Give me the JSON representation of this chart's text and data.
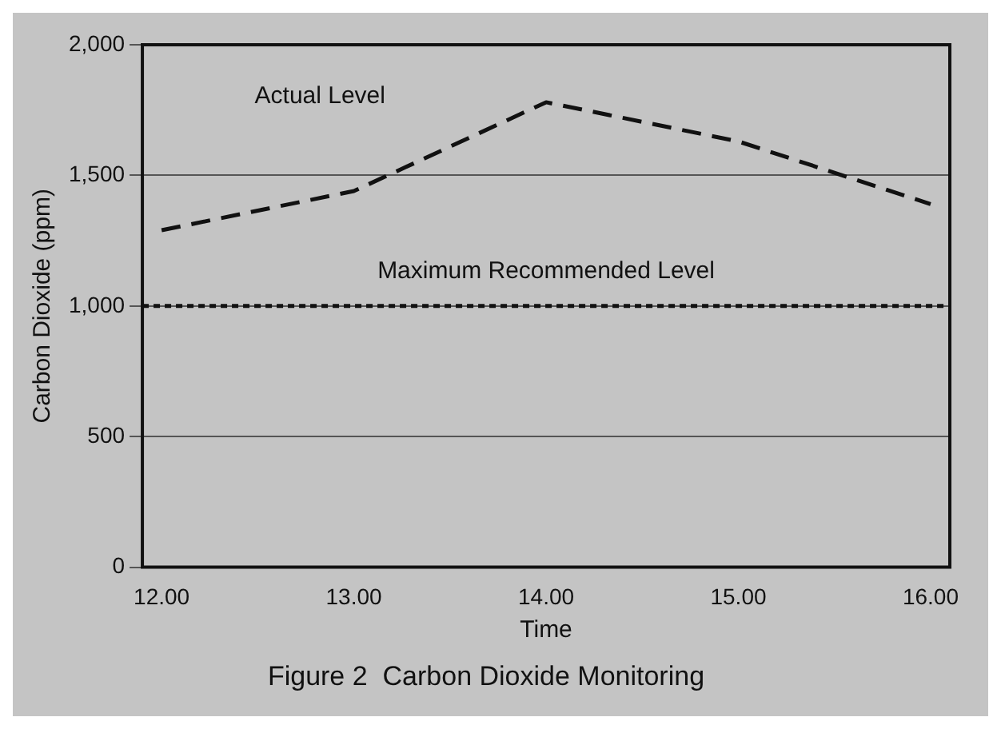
{
  "chart_data": {
    "type": "line",
    "title": "Figure 2  Carbon Dioxide Monitoring",
    "xlabel": "Time",
    "ylabel": "Carbon Dioxide (ppm)",
    "x": [
      12,
      13,
      14,
      15,
      16
    ],
    "series": [
      {
        "name": "Actual Level",
        "color": "#111111",
        "values": [
          1290,
          1440,
          1780,
          1630,
          1390
        ],
        "line_style": "dashed"
      }
    ],
    "xlim": [
      11.9,
      16.1
    ],
    "xticks": [
      {
        "value": 12,
        "label": "12.00"
      },
      {
        "value": 13,
        "label": "13.00"
      },
      {
        "value": 14,
        "label": "14.00"
      },
      {
        "value": 15,
        "label": "15.00"
      },
      {
        "value": 16,
        "label": "16.00"
      }
    ],
    "ylim": [
      0,
      2000
    ],
    "yticks": [
      {
        "value": 0,
        "label": "0"
      },
      {
        "value": 500,
        "label": "500"
      },
      {
        "value": 1000,
        "label": "1,000"
      },
      {
        "value": 1500,
        "label": "1,500"
      },
      {
        "value": 2000,
        "label": "2,000"
      }
    ],
    "ref_lines": [
      {
        "axis": "y",
        "value": 1000,
        "label": "Maximum Recommended Level",
        "color": "#111111",
        "line_style": "dotted"
      }
    ],
    "grid": "y",
    "legend": false,
    "marker": "none"
  }
}
